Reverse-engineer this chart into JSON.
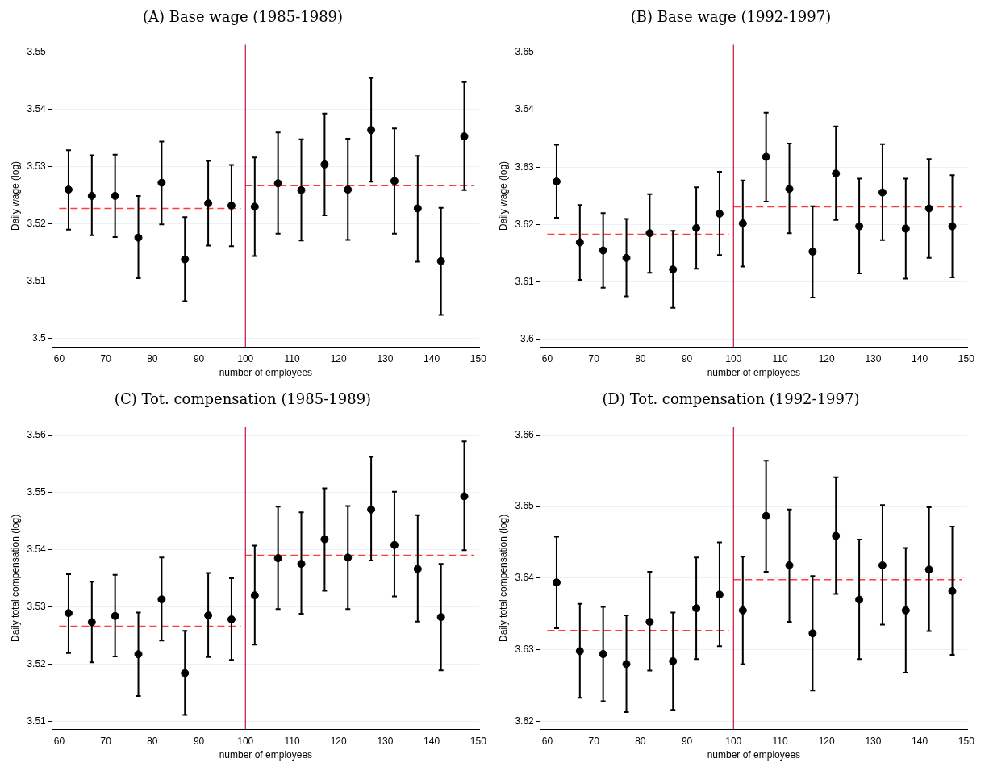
{
  "chart_data": [
    {
      "type": "scatter",
      "title": "(A) Base wage (1985-1989)",
      "xlabel": "number of employees",
      "ylabel": "Daily wage (log)",
      "xlim": [
        58.5,
        150.2
      ],
      "xticks": [
        60,
        70,
        80,
        90,
        100,
        110,
        120,
        130,
        140,
        150
      ],
      "ylim": [
        3.4985,
        3.5513
      ],
      "yticks": [
        3.5,
        3.51,
        3.52,
        3.53,
        3.54,
        3.55
      ],
      "grid": "y",
      "legend": false,
      "x": [
        62,
        67,
        72,
        77,
        82,
        87,
        92,
        97,
        102,
        107,
        112,
        117,
        122,
        127,
        132,
        137,
        142,
        147
      ],
      "series": [
        {
          "type": "scatter",
          "color": "#000000",
          "marker": "circle",
          "values": [
            3.526,
            3.5249,
            3.5249,
            3.5176,
            3.5272,
            3.5138,
            3.5236,
            3.5232,
            3.523,
            3.5271,
            3.5259,
            3.5304,
            3.526,
            3.5364,
            3.5275,
            3.5227,
            3.5135,
            3.5353
          ],
          "errors": [
            [
              3.519,
              3.5329
            ],
            [
              3.518,
              3.532
            ],
            [
              3.5177,
              3.5321
            ],
            [
              3.5105,
              3.5249
            ],
            [
              3.5199,
              3.5344
            ],
            [
              3.5065,
              3.5212
            ],
            [
              3.5162,
              3.531
            ],
            [
              3.5161,
              3.5303
            ],
            [
              3.5144,
              3.5316
            ],
            [
              3.5183,
              3.536
            ],
            [
              3.5171,
              3.5348
            ],
            [
              3.5215,
              3.5393
            ],
            [
              3.5172,
              3.5349
            ],
            [
              3.5274,
              3.5455
            ],
            [
              3.5183,
              3.5367
            ],
            [
              3.5134,
              3.5319
            ],
            [
              3.5041,
              3.5228
            ],
            [
              3.5259,
              3.5448
            ]
          ]
        },
        {
          "type": "line",
          "color": "#ff3b3b",
          "line_style": "dashed",
          "marker": "none",
          "x": [
            60,
            99
          ],
          "values": [
            3.5227,
            3.5227
          ]
        },
        {
          "type": "line",
          "color": "#ff3b3b",
          "line_style": "dashed",
          "marker": "none",
          "x": [
            100,
            149
          ],
          "values": [
            3.5267,
            3.5267
          ]
        }
      ],
      "ref_lines": [
        {
          "axis": "x",
          "value": 100,
          "color": "#c8103c"
        }
      ]
    },
    {
      "type": "scatter",
      "title": "(B) Base wage (1992-1997)",
      "xlabel": "number of employees",
      "ylabel": "Daily wage (log)",
      "xlim": [
        58.5,
        150.2
      ],
      "xticks": [
        60,
        70,
        80,
        90,
        100,
        110,
        120,
        130,
        140,
        150
      ],
      "ylim": [
        3.5987,
        3.6513
      ],
      "yticks": [
        3.6,
        3.61,
        3.62,
        3.63,
        3.64,
        3.65
      ],
      "grid": "y",
      "legend": false,
      "x": [
        62,
        67,
        72,
        77,
        82,
        87,
        92,
        97,
        102,
        107,
        112,
        117,
        122,
        127,
        132,
        137,
        142,
        147
      ],
      "series": [
        {
          "type": "scatter",
          "color": "#000000",
          "marker": "circle",
          "values": [
            3.6275,
            3.6169,
            3.6155,
            3.6142,
            3.6185,
            3.6122,
            3.6194,
            3.6219,
            3.6202,
            3.6318,
            3.6262,
            3.6153,
            3.6289,
            3.6197,
            3.6256,
            3.6193,
            3.6228,
            3.6197
          ],
          "errors": [
            [
              3.6212,
              3.6339
            ],
            [
              3.6104,
              3.6234
            ],
            [
              3.609,
              3.622
            ],
            [
              3.6075,
              3.621
            ],
            [
              3.6116,
              3.6253
            ],
            [
              3.6055,
              3.6189
            ],
            [
              3.6123,
              3.6265
            ],
            [
              3.6147,
              3.6292
            ],
            [
              3.6127,
              3.6277
            ],
            [
              3.624,
              3.6395
            ],
            [
              3.6185,
              3.6341
            ],
            [
              3.6073,
              3.6232
            ],
            [
              3.6208,
              3.6371
            ],
            [
              3.6115,
              3.628
            ],
            [
              3.6173,
              3.634
            ],
            [
              3.6106,
              3.628
            ],
            [
              3.6142,
              3.6314
            ],
            [
              3.6108,
              3.6286
            ]
          ]
        },
        {
          "type": "line",
          "color": "#ff3b3b",
          "line_style": "dashed",
          "marker": "none",
          "x": [
            60,
            99
          ],
          "values": [
            3.6183,
            3.6183
          ]
        },
        {
          "type": "line",
          "color": "#ff3b3b",
          "line_style": "dashed",
          "marker": "none",
          "x": [
            100,
            149
          ],
          "values": [
            3.6231,
            3.6231
          ]
        }
      ],
      "ref_lines": [
        {
          "axis": "x",
          "value": 100,
          "color": "#c8103c"
        }
      ]
    },
    {
      "type": "scatter",
      "title": "(C) Tot. compensation (1985-1989)",
      "xlabel": "number of employees",
      "ylabel": "Daily total compensation (log)",
      "xlim": [
        58.5,
        150.2
      ],
      "xticks": [
        60,
        70,
        80,
        90,
        100,
        110,
        120,
        130,
        140,
        150
      ],
      "ylim": [
        3.5086,
        3.5614
      ],
      "yticks": [
        3.51,
        3.52,
        3.53,
        3.54,
        3.55,
        3.56
      ],
      "grid": "y",
      "legend": false,
      "x": [
        62,
        67,
        72,
        77,
        82,
        87,
        92,
        97,
        102,
        107,
        112,
        117,
        122,
        127,
        132,
        137,
        142,
        147
      ],
      "series": [
        {
          "type": "scatter",
          "color": "#000000",
          "marker": "circle",
          "values": [
            3.5289,
            3.5273,
            3.5284,
            3.5217,
            3.5313,
            3.5184,
            3.5285,
            3.5278,
            3.532,
            3.5385,
            3.5375,
            3.5418,
            3.5386,
            3.547,
            3.5408,
            3.5366,
            3.5282,
            3.5493
          ],
          "errors": [
            [
              3.5219,
              3.5357
            ],
            [
              3.5203,
              3.5344
            ],
            [
              3.5213,
              3.5356
            ],
            [
              3.5144,
              3.529
            ],
            [
              3.5241,
              3.5386
            ],
            [
              3.5111,
              3.5258
            ],
            [
              3.5212,
              3.5359
            ],
            [
              3.5207,
              3.535
            ],
            [
              3.5234,
              3.5407
            ],
            [
              3.5296,
              3.5475
            ],
            [
              3.5288,
              3.5465
            ],
            [
              3.5328,
              3.5507
            ],
            [
              3.5296,
              3.5476
            ],
            [
              3.5381,
              3.5562
            ],
            [
              3.5318,
              3.5501
            ],
            [
              3.5274,
              3.546
            ],
            [
              3.5189,
              3.5375
            ],
            [
              3.5399,
              3.5589
            ]
          ]
        },
        {
          "type": "line",
          "color": "#ff3b3b",
          "line_style": "dashed",
          "marker": "none",
          "x": [
            60,
            99
          ],
          "values": [
            3.5266,
            3.5266
          ]
        },
        {
          "type": "line",
          "color": "#ff3b3b",
          "line_style": "dashed",
          "marker": "none",
          "x": [
            100,
            149
          ],
          "values": [
            3.539,
            3.539
          ]
        }
      ],
      "ref_lines": [
        {
          "axis": "x",
          "value": 100,
          "color": "#c8103c"
        }
      ]
    },
    {
      "type": "scatter",
      "title": "(D) Tot. compensation (1992-1997)",
      "xlabel": "number of employees",
      "ylabel": "Daily total compensation (log)",
      "xlim": [
        58.5,
        150.2
      ],
      "xticks": [
        60,
        70,
        80,
        90,
        100,
        110,
        120,
        130,
        140,
        150
      ],
      "ylim": [
        3.6189,
        3.6611
      ],
      "yticks": [
        3.62,
        3.63,
        3.64,
        3.65,
        3.66
      ],
      "grid": "y",
      "legend": false,
      "x": [
        62,
        67,
        72,
        77,
        82,
        87,
        92,
        97,
        102,
        107,
        112,
        117,
        122,
        127,
        132,
        137,
        142,
        147
      ],
      "series": [
        {
          "type": "scatter",
          "color": "#000000",
          "marker": "circle",
          "values": [
            3.6394,
            3.6298,
            3.6294,
            3.628,
            3.6339,
            3.6284,
            3.6358,
            3.6377,
            3.6355,
            3.6487,
            3.6418,
            3.6323,
            3.6459,
            3.637,
            3.6418,
            3.6355,
            3.6412,
            3.6382
          ],
          "errors": [
            [
              3.633,
              3.6458
            ],
            [
              3.6233,
              3.6364
            ],
            [
              3.6228,
              3.636
            ],
            [
              3.6213,
              3.6348
            ],
            [
              3.6271,
              3.6409
            ],
            [
              3.6216,
              3.6352
            ],
            [
              3.6287,
              3.6429
            ],
            [
              3.6305,
              3.645
            ],
            [
              3.628,
              3.643
            ],
            [
              3.6409,
              3.6564
            ],
            [
              3.6339,
              3.6496
            ],
            [
              3.6243,
              3.6403
            ],
            [
              3.6378,
              3.6541
            ],
            [
              3.6287,
              3.6454
            ],
            [
              3.6335,
              3.6502
            ],
            [
              3.6268,
              3.6442
            ],
            [
              3.6326,
              3.6499
            ],
            [
              3.6293,
              3.6472
            ]
          ]
        },
        {
          "type": "line",
          "color": "#ff3b3b",
          "line_style": "dashed",
          "marker": "none",
          "x": [
            60,
            99
          ],
          "values": [
            3.6327,
            3.6327
          ]
        },
        {
          "type": "line",
          "color": "#ff3b3b",
          "line_style": "dashed",
          "marker": "none",
          "x": [
            100,
            149
          ],
          "values": [
            3.6398,
            3.6398
          ]
        }
      ],
      "ref_lines": [
        {
          "axis": "x",
          "value": 100,
          "color": "#c8103c"
        }
      ]
    }
  ]
}
